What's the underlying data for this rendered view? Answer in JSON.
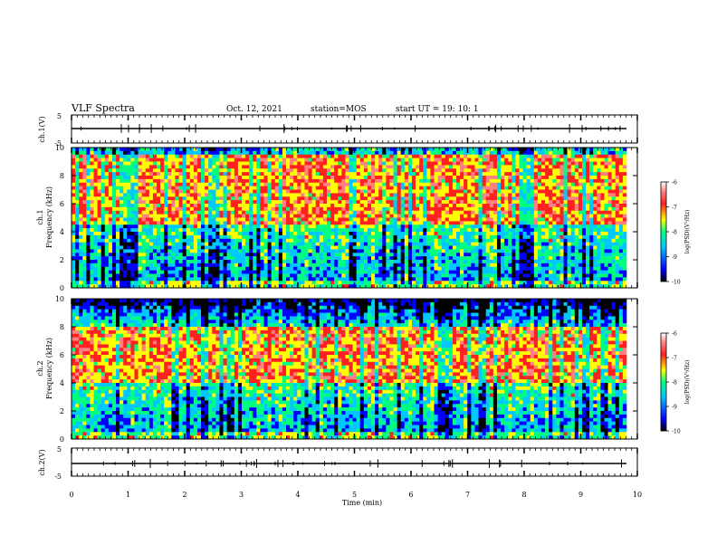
{
  "header": {
    "title": "VLF Spectra",
    "date": "Oct. 12, 2021",
    "station": "station=MOS",
    "start_ut": "start  UT =   19: 10: 1"
  },
  "chart_data": [
    {
      "type": "line",
      "panel": "ch1-waveform",
      "ylabel": "ch.1(V)",
      "ylim": [
        -5,
        5
      ],
      "y_ticks": [
        "5",
        "-5"
      ],
      "xlim": [
        0,
        10
      ],
      "series": [
        {
          "values": [
            -0.2,
            -0.2
          ]
        }
      ]
    },
    {
      "type": "heatmap",
      "panel": "ch1-spectrogram",
      "ylabel": "ch.1\nFrequency (kHz)",
      "ylim": [
        0,
        10
      ],
      "y_ticks": [
        "0",
        "2",
        "4",
        "6",
        "8",
        "10"
      ],
      "xlim": [
        0,
        9.85
      ],
      "intense_band_khz": [
        4.5,
        9.5
      ]
    },
    {
      "type": "heatmap",
      "panel": "ch2-spectrogram",
      "ylabel": "ch.2\nFrequency (kHz)",
      "ylim": [
        0,
        10
      ],
      "y_ticks": [
        "0",
        "2",
        "4",
        "6",
        "8",
        "10"
      ],
      "xlim": [
        0,
        9.85
      ],
      "intense_band_khz": [
        4.0,
        8.0
      ]
    },
    {
      "type": "line",
      "panel": "ch2-waveform",
      "ylabel": "ch.2(V)",
      "ylim": [
        -5,
        5
      ],
      "y_ticks": [
        "5",
        "-5"
      ],
      "xlim": [
        0,
        10
      ],
      "series": [
        {
          "values": [
            -0.2,
            -0.2
          ]
        }
      ]
    }
  ],
  "x_axis": {
    "xlabel": "Time  (min)",
    "ticks": [
      "0",
      "1",
      "2",
      "3",
      "4",
      "5",
      "6",
      "7",
      "8",
      "9",
      "10"
    ]
  },
  "colorbar": {
    "label": "log(PSD)(V²/Hz)",
    "ticks": [
      "-6",
      "-7",
      "-8",
      "-9",
      "-10"
    ],
    "range": [
      -10,
      -6
    ]
  },
  "colors": {
    "scale": [
      "#000000",
      "#0000ff",
      "#00c8ff",
      "#00ff80",
      "#ffff00",
      "#ff2020",
      "#ff8080",
      "#ffffff"
    ]
  }
}
